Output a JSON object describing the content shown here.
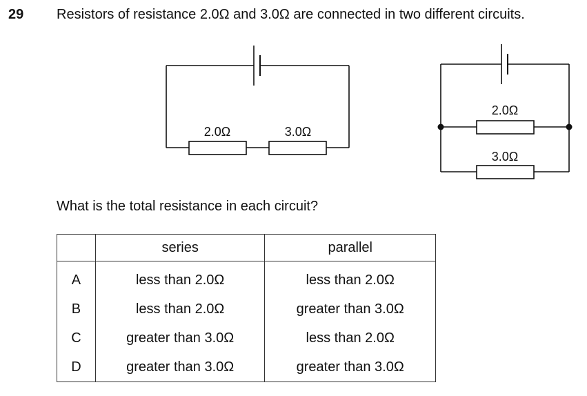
{
  "question": {
    "number": "29",
    "text": "Resistors of resistance 2.0Ω and 3.0Ω are connected in two different circuits.",
    "prompt": "What is the total resistance in each circuit?"
  },
  "series_circuit": {
    "resistor_1_label": "2.0Ω",
    "resistor_2_label": "3.0Ω"
  },
  "parallel_circuit": {
    "resistor_1_label": "2.0Ω",
    "resistor_2_label": "3.0Ω"
  },
  "table": {
    "headers": [
      "",
      "series",
      "parallel"
    ],
    "rows": [
      {
        "letter": "A",
        "series": "less than 2.0Ω",
        "parallel": "less than 2.0Ω"
      },
      {
        "letter": "B",
        "series": "less than 2.0Ω",
        "parallel": "greater than 3.0Ω"
      },
      {
        "letter": "C",
        "series": "greater than 3.0Ω",
        "parallel": "less than 2.0Ω"
      },
      {
        "letter": "D",
        "series": "greater than 3.0Ω",
        "parallel": "greater than 3.0Ω"
      }
    ]
  }
}
